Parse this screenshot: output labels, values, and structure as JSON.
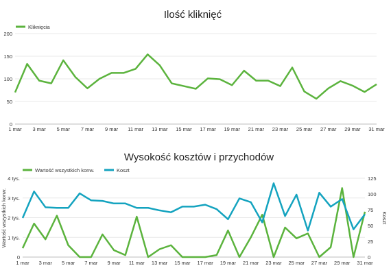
{
  "colors": {
    "green": "#5bb33d",
    "teal": "#14a3bf"
  },
  "chart_data": [
    {
      "type": "line",
      "title": "Ilość kliknięć",
      "x": [
        "1 mar",
        "2 mar",
        "3 mar",
        "4 mar",
        "5 mar",
        "6 mar",
        "7 mar",
        "8 mar",
        "9 mar",
        "10 mar",
        "11 mar",
        "12 mar",
        "13 mar",
        "14 mar",
        "15 mar",
        "16 mar",
        "17 mar",
        "18 mar",
        "19 mar",
        "20 mar",
        "21 mar",
        "22 mar",
        "23 mar",
        "24 mar",
        "25 mar",
        "26 mar",
        "27 mar",
        "28 mar",
        "29 mar",
        "30 mar",
        "31 mar"
      ],
      "x_tick_labels": [
        "1 mar",
        "3 mar",
        "5 mar",
        "7 mar",
        "9 mar",
        "11 mar",
        "13 mar",
        "15 mar",
        "17 mar",
        "19 mar",
        "21 mar",
        "23 mar",
        "25 mar",
        "27 mar",
        "29 mar",
        "31 mar"
      ],
      "y_ticks": [
        "0",
        "50",
        "100",
        "150",
        "200"
      ],
      "ylim": [
        0,
        200
      ],
      "legend_position": "top-left",
      "grid": true,
      "series": [
        {
          "name": "Kliknięcia",
          "color": "#5bb33d",
          "values": [
            70,
            133,
            96,
            90,
            141,
            104,
            79,
            100,
            113,
            113,
            122,
            154,
            130,
            90,
            84,
            78,
            101,
            99,
            86,
            118,
            96,
            96,
            84,
            125,
            72,
            56,
            79,
            95,
            85,
            71,
            88
          ]
        }
      ]
    },
    {
      "type": "line",
      "title": "Wysokość kosztów i przychodów",
      "x": [
        "1 mar",
        "2 mar",
        "3 mar",
        "4 mar",
        "5 mar",
        "6 mar",
        "7 mar",
        "8 mar",
        "9 mar",
        "10 mar",
        "11 mar",
        "12 mar",
        "13 mar",
        "14 mar",
        "15 mar",
        "16 mar",
        "17 mar",
        "18 mar",
        "19 mar",
        "20 mar",
        "21 mar",
        "22 mar",
        "23 mar",
        "24 mar",
        "25 mar",
        "26 mar",
        "27 mar",
        "28 mar",
        "29 mar",
        "30 mar",
        "31 mar"
      ],
      "x_tick_labels": [
        "1 mar",
        "3 mar",
        "5 mar",
        "7 mar",
        "9 mar",
        "11 mar",
        "13 mar",
        "15 mar",
        "17 mar",
        "19 mar",
        "21 mar",
        "23 mar",
        "25 mar",
        "27 mar",
        "29 mar",
        "31 mar"
      ],
      "ylabel_left": "Wartość wszystkich konw.",
      "ylabel_right": "Koszt",
      "y_left_ticks": [
        "0",
        "1 tys.",
        "2 tys.",
        "3 tys.",
        "4 tys."
      ],
      "y_right_ticks": [
        "0",
        "25",
        "50",
        "75",
        "100",
        "125"
      ],
      "ylim_left": [
        0,
        4000
      ],
      "ylim_right": [
        0,
        125
      ],
      "legend_position": "top-left",
      "grid": true,
      "series": [
        {
          "name": "Wartość wszystkich konw.",
          "color": "#5bb33d",
          "axis": "left",
          "values": [
            450,
            1700,
            900,
            2100,
            600,
            0,
            0,
            1150,
            350,
            100,
            2050,
            0,
            400,
            600,
            0,
            0,
            0,
            100,
            1350,
            0,
            1000,
            2150,
            0,
            1500,
            950,
            1200,
            0,
            500,
            3500,
            0,
            2300
          ]
        },
        {
          "name": "Koszt",
          "color": "#14a3bf",
          "axis": "right",
          "values": [
            62,
            104,
            79,
            78,
            78,
            101,
            90,
            89,
            85,
            85,
            78,
            78,
            74,
            71,
            80,
            80,
            83,
            76,
            60,
            93,
            87,
            55,
            117,
            65,
            99,
            42,
            102,
            80,
            92,
            44,
            68
          ]
        }
      ]
    }
  ]
}
